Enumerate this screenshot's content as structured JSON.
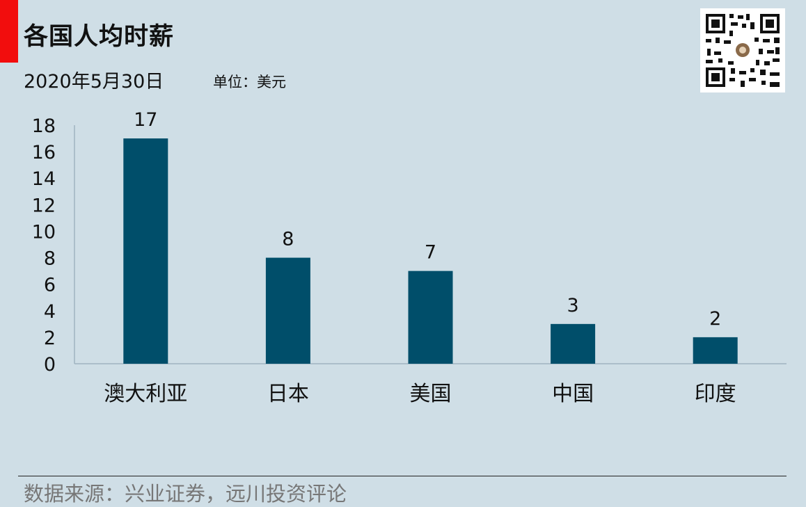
{
  "header": {
    "title": "各国人均时薪",
    "date": "2020年5月30日",
    "unit": "单位：美元"
  },
  "footer": {
    "source": "数据来源：兴业证券，远川投资评论"
  },
  "colors": {
    "accent": "#f20d0d",
    "bar": "#004e6a",
    "background": "#cfdee6",
    "axis": "#9fb4c0"
  },
  "chart_data": {
    "type": "bar",
    "categories": [
      "澳大利亚",
      "日本",
      "美国",
      "中国",
      "印度"
    ],
    "values": [
      17,
      8,
      7,
      3,
      2
    ],
    "data_labels": [
      "17",
      "8",
      "7",
      "3",
      "2"
    ],
    "yticks": [
      "0",
      "2",
      "4",
      "6",
      "8",
      "10",
      "12",
      "14",
      "16",
      "18"
    ],
    "ylim": [
      0,
      18
    ],
    "grid": false,
    "legend": "none"
  }
}
